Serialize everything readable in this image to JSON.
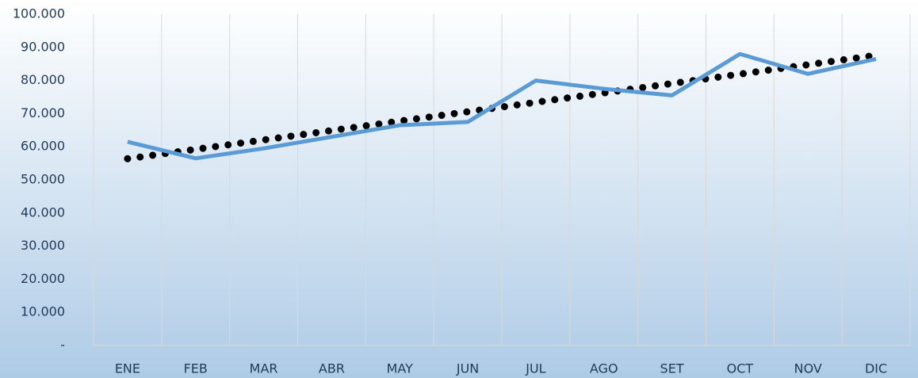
{
  "chart_data": {
    "type": "line",
    "categories": [
      "ENE",
      "FEB",
      "MAR",
      "ABR",
      "MAY",
      "JUN",
      "JUL",
      "AGO",
      "SET",
      "OCT",
      "NOV",
      "DIC"
    ],
    "series": [
      {
        "color": "#5b9bd5",
        "values": [
          61500,
          56500,
          59500,
          63000,
          66500,
          67500,
          80000,
          77500,
          75500,
          88000,
          82000,
          86500
        ]
      }
    ],
    "trendline": "linear",
    "ylim": [
      0,
      100000
    ],
    "yticks": [
      {
        "value": 0,
        "label": "-"
      },
      {
        "value": 10000,
        "label": "10.000"
      },
      {
        "value": 20000,
        "label": "20.000"
      },
      {
        "value": 30000,
        "label": "30.000"
      },
      {
        "value": 40000,
        "label": "40.000"
      },
      {
        "value": 50000,
        "label": "50.000"
      },
      {
        "value": 60000,
        "label": "60.000"
      },
      {
        "value": 70000,
        "label": "70.000"
      },
      {
        "value": 80000,
        "label": "80.000"
      },
      {
        "value": 90000,
        "label": "90.000"
      },
      {
        "value": 100000,
        "label": "100.000"
      }
    ]
  }
}
